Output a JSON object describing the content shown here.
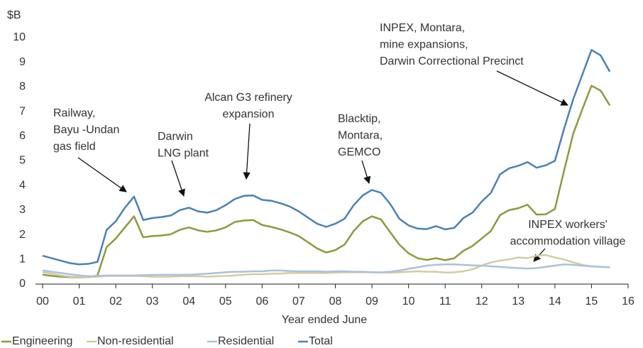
{
  "chart_data": {
    "type": "line",
    "ylabel": "$B",
    "xlabel": "Year ended June",
    "x": [
      0,
      0.25,
      0.5,
      0.75,
      1,
      1.25,
      1.5,
      1.75,
      2,
      2.25,
      2.5,
      2.75,
      3,
      3.25,
      3.5,
      3.75,
      4,
      4.25,
      4.5,
      4.75,
      5,
      5.25,
      5.5,
      5.75,
      6,
      6.25,
      6.5,
      6.75,
      7,
      7.25,
      7.5,
      7.75,
      8,
      8.25,
      8.5,
      8.75,
      9,
      9.25,
      9.5,
      9.75,
      10,
      10.25,
      10.5,
      10.75,
      11,
      11.25,
      11.5,
      11.75,
      12,
      12.25,
      12.5,
      12.75,
      13,
      13.25,
      13.5,
      13.75,
      14,
      14.25,
      14.5,
      14.75,
      15,
      15.25,
      15.5
    ],
    "xlim": [
      0,
      16
    ],
    "xticks": [
      {
        "value": 0,
        "label": "00"
      },
      {
        "value": 1,
        "label": "01"
      },
      {
        "value": 2,
        "label": "02"
      },
      {
        "value": 3,
        "label": "03"
      },
      {
        "value": 4,
        "label": "04"
      },
      {
        "value": 5,
        "label": "05"
      },
      {
        "value": 6,
        "label": "06"
      },
      {
        "value": 7,
        "label": "07"
      },
      {
        "value": 8,
        "label": "08"
      },
      {
        "value": 9,
        "label": "09"
      },
      10,
      11,
      12,
      13,
      14,
      15,
      16
    ],
    "ylim": [
      0,
      10
    ],
    "yticks": [
      0,
      1,
      2,
      3,
      4,
      5,
      6,
      7,
      8,
      9,
      10
    ],
    "grid": false,
    "legend": "bottom",
    "series": [
      {
        "name": "Engineering",
        "color": "#8c9a3c",
        "values": [
          0.38,
          0.33,
          0.3,
          0.28,
          0.27,
          0.28,
          0.35,
          1.5,
          1.85,
          2.3,
          2.75,
          1.9,
          1.95,
          1.97,
          2.02,
          2.2,
          2.3,
          2.18,
          2.12,
          2.18,
          2.3,
          2.52,
          2.58,
          2.6,
          2.4,
          2.32,
          2.22,
          2.1,
          1.95,
          1.7,
          1.45,
          1.28,
          1.38,
          1.6,
          2.15,
          2.55,
          2.75,
          2.62,
          2.1,
          1.6,
          1.25,
          1.05,
          0.98,
          1.05,
          0.97,
          1.05,
          1.35,
          1.55,
          1.85,
          2.15,
          2.8,
          3.0,
          3.08,
          3.22,
          2.82,
          2.83,
          3.05,
          4.6,
          6.1,
          7.1,
          8.05,
          7.85,
          7.25
        ]
      },
      {
        "name": "Non-residential",
        "color": "#d4caa2",
        "values": [
          0.48,
          0.42,
          0.35,
          0.3,
          0.28,
          0.28,
          0.3,
          0.33,
          0.33,
          0.33,
          0.33,
          0.32,
          0.3,
          0.3,
          0.3,
          0.32,
          0.32,
          0.32,
          0.3,
          0.32,
          0.33,
          0.35,
          0.38,
          0.4,
          0.4,
          0.42,
          0.43,
          0.45,
          0.45,
          0.45,
          0.45,
          0.45,
          0.47,
          0.48,
          0.48,
          0.48,
          0.48,
          0.47,
          0.47,
          0.48,
          0.5,
          0.52,
          0.5,
          0.5,
          0.47,
          0.48,
          0.52,
          0.6,
          0.75,
          0.88,
          0.95,
          1.0,
          1.08,
          1.05,
          1.15,
          1.18,
          1.08,
          1.0,
          0.88,
          0.78,
          0.72,
          0.7,
          0.68
        ]
      },
      {
        "name": "Residential",
        "color": "#a9c2dc",
        "values": [
          0.55,
          0.5,
          0.45,
          0.4,
          0.35,
          0.32,
          0.33,
          0.35,
          0.35,
          0.35,
          0.35,
          0.36,
          0.37,
          0.38,
          0.38,
          0.38,
          0.38,
          0.4,
          0.42,
          0.45,
          0.48,
          0.5,
          0.5,
          0.52,
          0.52,
          0.55,
          0.55,
          0.53,
          0.52,
          0.52,
          0.52,
          0.5,
          0.52,
          0.52,
          0.5,
          0.5,
          0.48,
          0.48,
          0.5,
          0.55,
          0.62,
          0.68,
          0.75,
          0.78,
          0.8,
          0.8,
          0.78,
          0.76,
          0.75,
          0.72,
          0.7,
          0.67,
          0.65,
          0.63,
          0.65,
          0.7,
          0.75,
          0.8,
          0.78,
          0.75,
          0.72,
          0.7,
          0.68
        ]
      },
      {
        "name": "Total",
        "color": "#4a82b0",
        "values": [
          1.15,
          1.05,
          0.95,
          0.85,
          0.8,
          0.82,
          0.9,
          2.2,
          2.55,
          3.1,
          3.55,
          2.6,
          2.68,
          2.72,
          2.78,
          3.0,
          3.1,
          2.95,
          2.9,
          3.0,
          3.2,
          3.45,
          3.58,
          3.6,
          3.42,
          3.38,
          3.28,
          3.15,
          2.95,
          2.7,
          2.45,
          2.32,
          2.45,
          2.65,
          3.2,
          3.6,
          3.82,
          3.7,
          3.25,
          2.65,
          2.38,
          2.25,
          2.23,
          2.35,
          2.22,
          2.28,
          2.68,
          2.9,
          3.35,
          3.7,
          4.45,
          4.7,
          4.8,
          4.95,
          4.72,
          4.82,
          5.0,
          6.3,
          7.5,
          8.5,
          9.5,
          9.28,
          8.62
        ]
      }
    ],
    "annotations": [
      {
        "lines": [
          "Railway,",
          "Bayu -Undan",
          "gas field"
        ]
      },
      {
        "lines": [
          "Darwin",
          "LNG plant"
        ]
      },
      {
        "lines": [
          "Alcan G3 refinery",
          "expansion"
        ]
      },
      {
        "lines": [
          "Blacktip,",
          "Montara,",
          "GEMCO"
        ]
      },
      {
        "lines": [
          "INPEX, Montara,",
          "mine expansions,",
          "Darwin Correctional Precinct"
        ]
      },
      {
        "lines": [
          "INPEX workers'",
          "accommodation village"
        ]
      }
    ]
  }
}
